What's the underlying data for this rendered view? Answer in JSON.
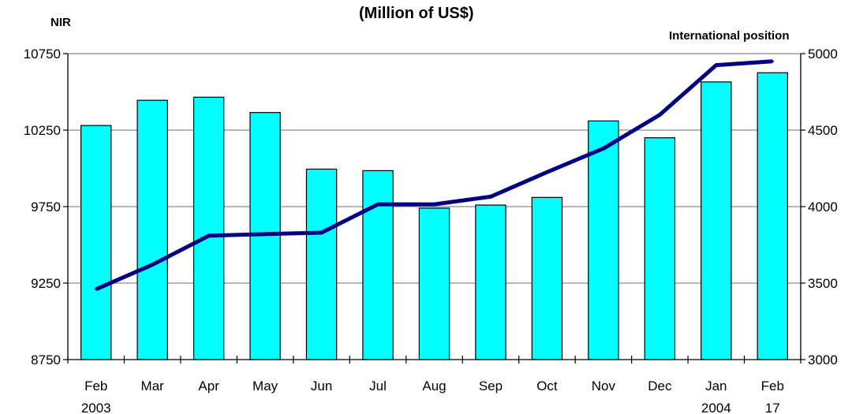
{
  "chart_data": {
    "type": "bar",
    "title": "(Million of US$)",
    "ylabel": "NIR",
    "y2label": "International position",
    "categories": [
      "Feb",
      "Mar",
      "Apr",
      "May",
      "Jun",
      "Jul",
      "Aug",
      "Sep",
      "Oct",
      "Nov",
      "Dec",
      "Jan",
      "Feb"
    ],
    "sublabels": [
      "2003",
      "",
      "",
      "",
      "",
      "",
      "",
      "",
      "",
      "",
      "",
      "2004",
      "17"
    ],
    "ylim": [
      8750,
      10750
    ],
    "yticks": [
      8750,
      9250,
      9750,
      10250,
      10750
    ],
    "y2lim": [
      3000,
      5000
    ],
    "y2ticks": [
      3000,
      3500,
      4000,
      4500,
      5000
    ],
    "grid": true,
    "series": [
      {
        "type": "bar",
        "axis": "left",
        "color": "#00FFFF",
        "values": [
          10280,
          10445,
          10465,
          10365,
          9995,
          9985,
          9740,
          9760,
          9810,
          10310,
          10200,
          10565,
          10625
        ]
      },
      {
        "type": "line",
        "axis": "right",
        "color": "#000080",
        "values": [
          3460,
          3620,
          3810,
          3820,
          3830,
          4015,
          4015,
          4065,
          4225,
          4380,
          4600,
          4925,
          4950
        ]
      }
    ]
  }
}
